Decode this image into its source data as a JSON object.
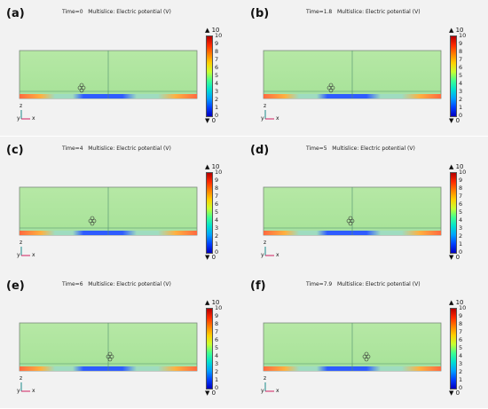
{
  "panels": [
    {
      "label": "(a)",
      "title": "Time=0   Multislice: Electric potential (V)",
      "particle_frac": 0.34
    },
    {
      "label": "(b)",
      "title": "Time=1.8   Multislice: Electric potential (V)",
      "particle_frac": 0.37
    },
    {
      "label": "(c)",
      "title": "Time=4   Multislice: Electric potential (V)",
      "particle_frac": 0.4
    },
    {
      "label": "(d)",
      "title": "Time=5   Multislice: Electric potential (V)",
      "particle_frac": 0.48
    },
    {
      "label": "(e)",
      "title": "Time=6   Multislice: Electric potential (V)",
      "particle_frac": 0.5
    },
    {
      "label": "(f)",
      "title": "Time=7.9   Multislice: Electric potential (V)",
      "particle_frac": 0.57
    }
  ],
  "colorbar": {
    "max_marker": "▲ 10",
    "min_marker": "▼ 0",
    "ticks": [
      "10",
      "9",
      "8",
      "7",
      "6",
      "5",
      "4",
      "3",
      "2",
      "1",
      "0"
    ],
    "colors": [
      "#b40000",
      "#ff2a00",
      "#ff8000",
      "#ffd000",
      "#c8ff30",
      "#40ff90",
      "#00e0d0",
      "#00a0ff",
      "#0040ff",
      "#0000c0"
    ]
  },
  "axes_labels": {
    "z": "z",
    "x": "x",
    "y": "y"
  },
  "colors": {
    "field": "#a9e39a",
    "field_top": "#b6e8a5",
    "electrode_red": "#ff6a40",
    "electrode_blue": "#2f5cff",
    "particle": "#333333"
  }
}
